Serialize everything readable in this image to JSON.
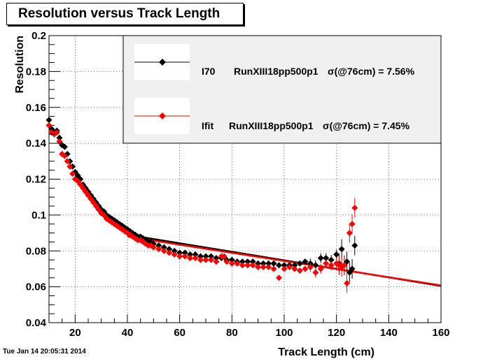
{
  "title": "Resolution versus Track Length",
  "timestamp": "Tue Jan 14 20:05:31 2014",
  "chart_data": {
    "type": "scatter",
    "xlabel": "Track Length (cm)",
    "ylabel": "Resolution",
    "xlim": [
      10,
      160
    ],
    "ylim": [
      0.04,
      0.2
    ],
    "xticks": [
      20,
      40,
      60,
      80,
      100,
      120,
      140,
      160
    ],
    "yticks": [
      0.04,
      0.06,
      0.08,
      0.1,
      0.12,
      0.14,
      0.16,
      0.18,
      0.2
    ],
    "ytick_labels": [
      "0.04",
      "0.06",
      "0.08",
      "0.1",
      "0.12",
      "0.14",
      "0.16",
      "0.18",
      "0.2"
    ],
    "grid": true,
    "legend_position": "top-right",
    "series": [
      {
        "name": "I70",
        "legend_label": "RunXIII18pp500p1",
        "legend_stat": "σ(@76cm) =  7.56%",
        "color": "#000000",
        "marker": "diamond",
        "x": [
          10,
          11,
          12,
          13,
          14,
          15,
          16,
          17,
          18,
          19,
          20,
          21,
          22,
          23,
          24,
          25,
          26,
          27,
          28,
          29,
          30,
          31,
          32,
          33,
          34,
          35,
          36,
          37,
          38,
          39,
          40,
          41,
          42,
          43,
          44,
          45,
          46,
          47,
          48,
          49,
          50,
          52,
          54,
          56,
          58,
          60,
          62,
          64,
          66,
          68,
          70,
          72,
          74,
          76,
          78,
          80,
          82,
          84,
          86,
          88,
          90,
          92,
          94,
          96,
          98,
          100,
          102,
          104,
          106,
          108,
          110,
          112,
          114,
          116,
          118,
          120,
          121,
          122,
          123,
          124,
          125,
          126,
          127
        ],
        "y": [
          0.153,
          0.148,
          0.146,
          0.147,
          0.143,
          0.139,
          0.138,
          0.134,
          0.13,
          0.127,
          0.124,
          0.122,
          0.12,
          0.117,
          0.115,
          0.113,
          0.111,
          0.109,
          0.107,
          0.105,
          0.103,
          0.102,
          0.1,
          0.099,
          0.098,
          0.097,
          0.096,
          0.095,
          0.094,
          0.093,
          0.092,
          0.091,
          0.09,
          0.089,
          0.088,
          0.088,
          0.087,
          0.086,
          0.085,
          0.085,
          0.084,
          0.083,
          0.082,
          0.081,
          0.08,
          0.079,
          0.079,
          0.078,
          0.078,
          0.077,
          0.077,
          0.077,
          0.076,
          0.076,
          0.075,
          0.075,
          0.074,
          0.074,
          0.074,
          0.074,
          0.073,
          0.073,
          0.073,
          0.073,
          0.072,
          0.072,
          0.072,
          0.072,
          0.073,
          0.074,
          0.073,
          0.072,
          0.076,
          0.076,
          0.075,
          0.078,
          0.073,
          0.081,
          0.072,
          0.074,
          0.068,
          0.07,
          0.083
        ],
        "fit": {
          "x": [
            40,
            160
          ],
          "y": [
            0.089,
            0.0605
          ]
        }
      },
      {
        "name": "Ifit",
        "legend_label": "RunXIII18pp500p1",
        "legend_stat": "σ(@76cm) =  7.45%",
        "color": "#ff0000",
        "marker": "diamond",
        "x": [
          10,
          11,
          12,
          13,
          14,
          15,
          16,
          17,
          18,
          19,
          20,
          21,
          22,
          23,
          24,
          25,
          26,
          27,
          28,
          29,
          30,
          31,
          32,
          33,
          34,
          35,
          36,
          37,
          38,
          39,
          40,
          41,
          42,
          43,
          44,
          45,
          46,
          47,
          48,
          49,
          50,
          52,
          54,
          56,
          58,
          60,
          62,
          64,
          66,
          68,
          70,
          72,
          74,
          76,
          77,
          78,
          80,
          82,
          84,
          86,
          88,
          90,
          92,
          94,
          96,
          98,
          100,
          102,
          104,
          106,
          108,
          110,
          112,
          114,
          116,
          118,
          120,
          121,
          122,
          123,
          124,
          125,
          126,
          127
        ],
        "y": [
          0.15,
          0.146,
          0.145,
          0.146,
          0.141,
          0.134,
          0.133,
          0.13,
          0.127,
          0.123,
          0.12,
          0.119,
          0.117,
          0.115,
          0.113,
          0.111,
          0.109,
          0.107,
          0.105,
          0.103,
          0.101,
          0.1,
          0.098,
          0.097,
          0.096,
          0.095,
          0.094,
          0.093,
          0.092,
          0.091,
          0.09,
          0.089,
          0.088,
          0.087,
          0.086,
          0.086,
          0.085,
          0.084,
          0.083,
          0.083,
          0.082,
          0.081,
          0.08,
          0.079,
          0.078,
          0.077,
          0.077,
          0.076,
          0.076,
          0.075,
          0.075,
          0.075,
          0.074,
          0.077,
          0.077,
          0.074,
          0.073,
          0.073,
          0.072,
          0.072,
          0.072,
          0.071,
          0.071,
          0.071,
          0.07,
          0.065,
          0.07,
          0.071,
          0.07,
          0.069,
          0.07,
          0.071,
          0.068,
          0.07,
          0.073,
          0.072,
          0.073,
          0.072,
          0.071,
          0.072,
          0.062,
          0.09,
          0.095,
          0.104
        ],
        "fit": {
          "x": [
            40,
            160
          ],
          "y": [
            0.088,
            0.0608
          ]
        }
      }
    ]
  }
}
